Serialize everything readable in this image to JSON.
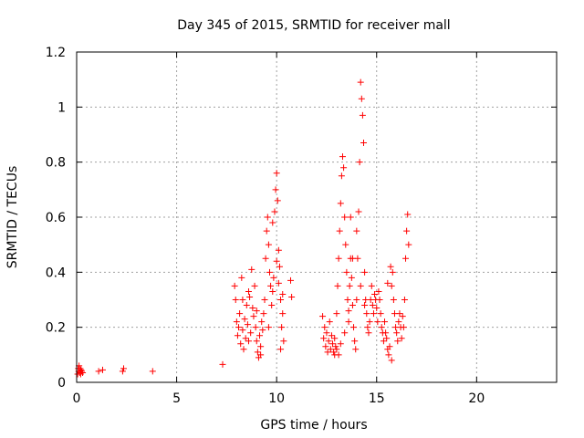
{
  "chart_data": {
    "type": "scatter",
    "title": "Day 345 of 2015, SRMTID for receiver mall",
    "xlabel": "GPS time / hours",
    "ylabel": "SRMTID / TECUs",
    "xlim": [
      0,
      24
    ],
    "ylim": [
      0,
      1.2
    ],
    "x_ticks": [
      0,
      5,
      10,
      15,
      20
    ],
    "x_tick_labels": [
      "0",
      "5",
      "10",
      "15",
      "20"
    ],
    "y_ticks": [
      0,
      0.2,
      0.4,
      0.6,
      0.8,
      1.0,
      1.2
    ],
    "y_tick_labels": [
      "0",
      "0.2",
      "0.4",
      "0.6",
      "0.8",
      "1",
      "1.2"
    ],
    "grid": true,
    "marker": "+",
    "series": [
      {
        "name": "SRMTID",
        "color": "#ff0000",
        "points": [
          [
            0.05,
            0.03
          ],
          [
            0.08,
            0.05
          ],
          [
            0.1,
            0.04
          ],
          [
            0.12,
            0.06
          ],
          [
            0.15,
            0.035
          ],
          [
            0.18,
            0.05
          ],
          [
            0.2,
            0.03
          ],
          [
            0.22,
            0.045
          ],
          [
            0.25,
            0.04
          ],
          [
            0.3,
            0.035
          ],
          [
            1.1,
            0.04
          ],
          [
            1.3,
            0.045
          ],
          [
            2.3,
            0.04
          ],
          [
            2.35,
            0.05
          ],
          [
            3.8,
            0.04
          ],
          [
            7.3,
            0.065
          ],
          [
            7.9,
            0.35
          ],
          [
            7.95,
            0.3
          ],
          [
            8.0,
            0.22
          ],
          [
            8.05,
            0.17
          ],
          [
            8.1,
            0.2
          ],
          [
            8.15,
            0.25
          ],
          [
            8.2,
            0.14
          ],
          [
            8.25,
            0.38
          ],
          [
            8.3,
            0.19
          ],
          [
            8.35,
            0.12
          ],
          [
            8.4,
            0.23
          ],
          [
            8.45,
            0.16
          ],
          [
            8.5,
            0.28
          ],
          [
            8.55,
            0.21
          ],
          [
            8.6,
            0.33
          ],
          [
            8.65,
            0.31
          ],
          [
            8.7,
            0.18
          ],
          [
            8.75,
            0.41
          ],
          [
            8.8,
            0.27
          ],
          [
            8.85,
            0.24
          ],
          [
            8.9,
            0.35
          ],
          [
            8.95,
            0.2
          ],
          [
            9.0,
            0.15
          ],
          [
            9.05,
            0.11
          ],
          [
            9.1,
            0.09
          ],
          [
            9.15,
            0.17
          ],
          [
            9.2,
            0.13
          ],
          [
            9.25,
            0.22
          ],
          [
            9.3,
            0.19
          ],
          [
            9.35,
            0.25
          ],
          [
            9.4,
            0.3
          ],
          [
            9.45,
            0.45
          ],
          [
            9.5,
            0.55
          ],
          [
            9.55,
            0.6
          ],
          [
            9.6,
            0.5
          ],
          [
            9.65,
            0.4
          ],
          [
            9.7,
            0.35
          ],
          [
            9.75,
            0.28
          ],
          [
            9.8,
            0.33
          ],
          [
            9.85,
            0.38
          ],
          [
            9.9,
            0.62
          ],
          [
            9.95,
            0.7
          ],
          [
            10.0,
            0.76
          ],
          [
            10.05,
            0.66
          ],
          [
            10.1,
            0.48
          ],
          [
            10.15,
            0.42
          ],
          [
            10.2,
            0.3
          ],
          [
            10.25,
            0.2
          ],
          [
            10.3,
            0.25
          ],
          [
            10.35,
            0.15
          ],
          [
            8.3,
            0.3
          ],
          [
            8.6,
            0.15
          ],
          [
            9.0,
            0.26
          ],
          [
            9.2,
            0.1
          ],
          [
            9.6,
            0.2
          ],
          [
            9.8,
            0.58
          ],
          [
            10.0,
            0.44
          ],
          [
            10.1,
            0.36
          ],
          [
            10.2,
            0.12
          ],
          [
            10.3,
            0.32
          ],
          [
            10.7,
            0.37
          ],
          [
            10.75,
            0.31
          ],
          [
            12.3,
            0.24
          ],
          [
            12.35,
            0.16
          ],
          [
            12.4,
            0.2
          ],
          [
            12.45,
            0.13
          ],
          [
            12.5,
            0.18
          ],
          [
            12.55,
            0.11
          ],
          [
            12.6,
            0.15
          ],
          [
            12.65,
            0.22
          ],
          [
            12.7,
            0.12
          ],
          [
            12.75,
            0.17
          ],
          [
            12.8,
            0.14
          ],
          [
            12.85,
            0.11
          ],
          [
            12.9,
            0.16
          ],
          [
            12.95,
            0.13
          ],
          [
            13.0,
            0.25
          ],
          [
            13.05,
            0.35
          ],
          [
            13.1,
            0.45
          ],
          [
            13.15,
            0.55
          ],
          [
            13.2,
            0.65
          ],
          [
            13.25,
            0.75
          ],
          [
            13.3,
            0.82
          ],
          [
            13.35,
            0.78
          ],
          [
            13.4,
            0.6
          ],
          [
            13.45,
            0.5
          ],
          [
            13.5,
            0.4
          ],
          [
            13.55,
            0.3
          ],
          [
            13.6,
            0.22
          ],
          [
            13.65,
            0.35
          ],
          [
            13.7,
            0.45
          ],
          [
            13.75,
            0.38
          ],
          [
            13.8,
            0.28
          ],
          [
            13.85,
            0.2
          ],
          [
            13.9,
            0.15
          ],
          [
            13.95,
            0.12
          ],
          [
            14.0,
            0.3
          ],
          [
            14.05,
            0.45
          ],
          [
            14.1,
            0.62
          ],
          [
            14.15,
            0.8
          ],
          [
            14.2,
            1.09
          ],
          [
            14.25,
            1.03
          ],
          [
            14.3,
            0.97
          ],
          [
            14.35,
            0.87
          ],
          [
            14.4,
            0.4
          ],
          [
            14.45,
            0.3
          ],
          [
            14.5,
            0.25
          ],
          [
            14.55,
            0.2
          ],
          [
            14.6,
            0.18
          ],
          [
            14.65,
            0.22
          ],
          [
            14.7,
            0.3
          ],
          [
            14.75,
            0.35
          ],
          [
            14.8,
            0.28
          ],
          [
            14.85,
            0.25
          ],
          [
            14.9,
            0.32
          ],
          [
            14.95,
            0.3
          ],
          [
            15.0,
            0.27
          ],
          [
            15.05,
            0.22
          ],
          [
            15.1,
            0.33
          ],
          [
            15.15,
            0.3
          ],
          [
            15.2,
            0.25
          ],
          [
            15.25,
            0.2
          ],
          [
            15.3,
            0.18
          ],
          [
            15.35,
            0.15
          ],
          [
            15.4,
            0.22
          ],
          [
            15.45,
            0.18
          ],
          [
            15.5,
            0.16
          ],
          [
            15.55,
            0.12
          ],
          [
            15.6,
            0.1
          ],
          [
            15.65,
            0.13
          ],
          [
            15.7,
            0.42
          ],
          [
            15.75,
            0.35
          ],
          [
            15.8,
            0.4
          ],
          [
            15.85,
            0.3
          ],
          [
            15.9,
            0.25
          ],
          [
            15.95,
            0.2
          ],
          [
            16.0,
            0.18
          ],
          [
            16.05,
            0.15
          ],
          [
            16.1,
            0.22
          ],
          [
            16.15,
            0.25
          ],
          [
            16.2,
            0.2
          ],
          [
            16.3,
            0.24
          ],
          [
            16.4,
            0.3
          ],
          [
            16.45,
            0.45
          ],
          [
            16.5,
            0.55
          ],
          [
            16.55,
            0.61
          ],
          [
            16.6,
            0.5
          ],
          [
            16.35,
            0.2
          ],
          [
            16.25,
            0.16
          ],
          [
            15.55,
            0.36
          ],
          [
            15.75,
            0.08
          ],
          [
            13.0,
            0.12
          ],
          [
            13.1,
            0.1
          ],
          [
            13.2,
            0.14
          ],
          [
            12.9,
            0.1
          ],
          [
            13.4,
            0.18
          ],
          [
            13.6,
            0.26
          ],
          [
            13.7,
            0.6
          ],
          [
            13.8,
            0.45
          ],
          [
            14.0,
            0.55
          ],
          [
            14.2,
            0.35
          ],
          [
            14.4,
            0.28
          ]
        ]
      }
    ]
  }
}
